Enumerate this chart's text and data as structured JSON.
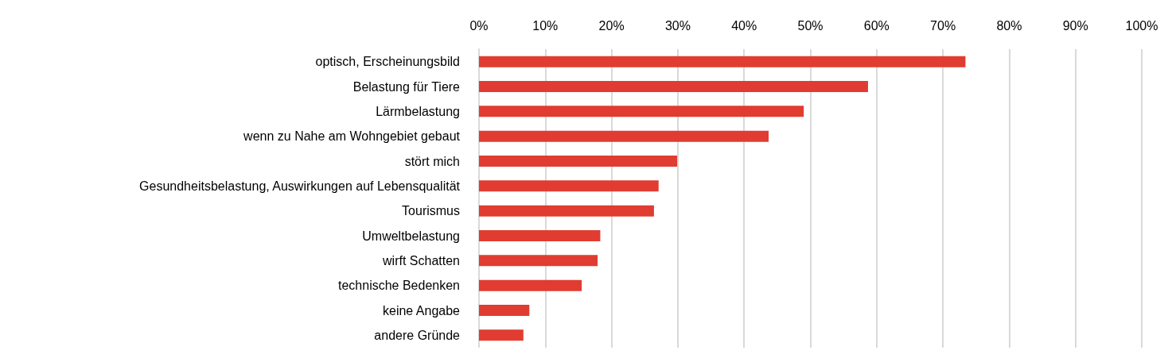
{
  "chart_data": {
    "type": "bar",
    "orientation": "horizontal",
    "categories": [
      "optisch, Erscheinungsbild",
      "Belastung für Tiere",
      "Lärmbelastung",
      "wenn zu Nahe am Wohngebiet gebaut",
      "stört mich",
      "Gesundheitsbelastung, Auswirkungen auf Lebensqualität",
      "Tourismus",
      "Umweltbelastung",
      "wirft Schatten",
      "technische Bedenken",
      "keine Angabe",
      "andere Gründe"
    ],
    "values": [
      73.4,
      58.7,
      49.0,
      43.7,
      29.9,
      27.1,
      26.4,
      18.3,
      17.9,
      15.5,
      7.6,
      6.7
    ],
    "color": "#e03c31",
    "xlim": [
      0,
      100
    ],
    "xticks": [
      {
        "value": 0,
        "label": "0%"
      },
      {
        "value": 10,
        "label": "10%"
      },
      {
        "value": 20,
        "label": "20%"
      },
      {
        "value": 30,
        "label": "30%"
      },
      {
        "value": 40,
        "label": "40%"
      },
      {
        "value": 50,
        "label": "50%"
      },
      {
        "value": 60,
        "label": "60%"
      },
      {
        "value": 70,
        "label": "70%"
      },
      {
        "value": 80,
        "label": "80%"
      },
      {
        "value": 90,
        "label": "90%"
      },
      {
        "value": 100,
        "label": "100%"
      }
    ],
    "grid": "x"
  }
}
